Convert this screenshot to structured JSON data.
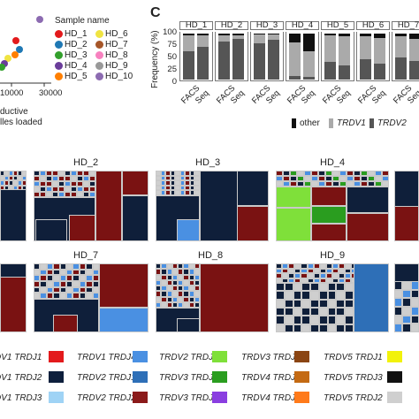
{
  "panel_a": {
    "legend_title": "Sample name",
    "samples": [
      {
        "label": "HD_1",
        "color": "#e31a1c"
      },
      {
        "label": "HD_2",
        "color": "#1f78b4"
      },
      {
        "label": "HD_3",
        "color": "#33a02c"
      },
      {
        "label": "HD_4",
        "color": "#6a3d9a"
      },
      {
        "label": "HD_5",
        "color": "#ff7f00"
      },
      {
        "label": "HD_6",
        "color": "#f0e442"
      },
      {
        "label": "HD_7",
        "color": "#a65628"
      },
      {
        "label": "HD_8",
        "color": "#f781bf"
      },
      {
        "label": "HD_9",
        "color": "#999999"
      },
      {
        "label": "HD_10",
        "color": "#8c6bb1"
      }
    ],
    "xticks": [
      "10000",
      "30000"
    ],
    "xlabel_line1": "ductive",
    "xlabel_line2": "lles loaded"
  },
  "panel_c": {
    "letter": "C",
    "ylabel": "Frequency (%)",
    "yticks": [
      "100",
      "75",
      "50",
      "25",
      "0"
    ],
    "samples": [
      "HD_1",
      "HD_2",
      "HD_3",
      "HD_4",
      "HD_5",
      "HD_6",
      "HD_7"
    ],
    "bar_labels": [
      "FACS",
      "Seq"
    ],
    "legend": [
      {
        "label": "other",
        "color": "#111111",
        "italic": false
      },
      {
        "label": "TRDV1",
        "color": "#aaaaaa",
        "italic": true
      },
      {
        "label": "TRDV2",
        "color": "#555555",
        "italic": true
      }
    ]
  },
  "chart_data": {
    "type": "bar",
    "stacked": true,
    "ylabel": "Frequency (%)",
    "ylim": [
      0,
      100
    ],
    "categories": [
      "HD_1 FACS",
      "HD_1 Seq",
      "HD_2 FACS",
      "HD_2 Seq",
      "HD_3 FACS",
      "HD_3 Seq",
      "HD_4 FACS",
      "HD_4 Seq",
      "HD_5 FACS",
      "HD_5 Seq",
      "HD_6 FACS",
      "HD_6 Seq",
      "HD_7 FACS",
      "HD_7 Seq"
    ],
    "series": [
      {
        "name": "TRDV2",
        "values": [
          62,
          72,
          82,
          88,
          78,
          86,
          8,
          6,
          38,
          30,
          44,
          34,
          48,
          40
        ]
      },
      {
        "name": "TRDV1",
        "values": [
          34,
          24,
          15,
          9,
          20,
          12,
          72,
          56,
          58,
          64,
          50,
          56,
          46,
          48
        ]
      },
      {
        "name": "other",
        "values": [
          4,
          4,
          3,
          3,
          2,
          2,
          20,
          38,
          4,
          6,
          6,
          10,
          6,
          12
        ]
      }
    ]
  },
  "treemaps": {
    "row1": [
      "HD_2",
      "HD_3",
      "HD_4"
    ],
    "row2": [
      "HD_7",
      "HD_8",
      "HD_9"
    ]
  },
  "bottom_legend": [
    {
      "label": "DV1 TRDJ1",
      "color": "#e31a1c"
    },
    {
      "label": "TRDV1 TRDJ4",
      "color": "#4a90e2"
    },
    {
      "label": "TRDV2 TRDJ3",
      "color": "#7fe03a"
    },
    {
      "label": "TRDV3 TRDJ2",
      "color": "#8b4513"
    },
    {
      "label": "TRDV5 TRDJ1",
      "color": "#f2f20a"
    },
    {
      "label": "DV1 TRDJ2",
      "color": "#0d1f3c"
    },
    {
      "label": "TRDV2 TRDJ1",
      "color": "#2e6fb7"
    },
    {
      "label": "TRDV3 TRDJ1",
      "color": "#2a9d1f"
    },
    {
      "label": "TRDV4 TRDJ1",
      "color": "#c46a13"
    },
    {
      "label": "TRDV5 TRDJ3",
      "color": "#111111"
    },
    {
      "label": "DV1 TRDJ3",
      "color": "#9fd3f5"
    },
    {
      "label": "TRDV2 TRDJ2",
      "color": "#8b1a1a"
    },
    {
      "label": "TRDV3 TRDJ3",
      "color": "#8a3ee0"
    },
    {
      "label": "TRDV4 TRDJ3",
      "color": "#ff7a1a"
    },
    {
      "label": "TRDV5 TRDJ2",
      "color": "#cfcfcf"
    }
  ]
}
